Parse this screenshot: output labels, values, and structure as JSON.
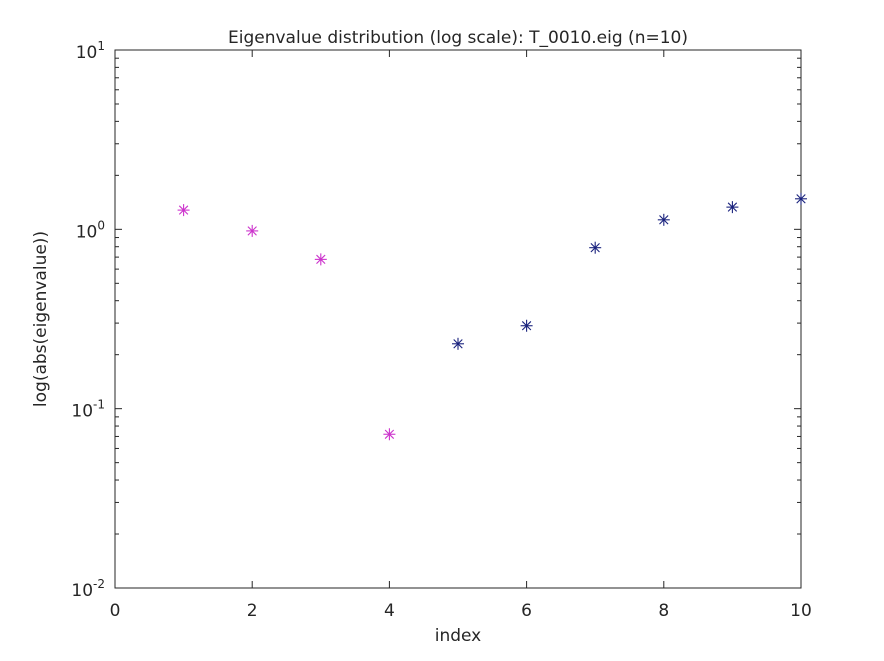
{
  "chart_data": {
    "type": "scatter",
    "title": "Eigenvalue distribution (log scale): T_0010.eig (n=10)",
    "xlabel": "index",
    "ylabel": "log(abs(eigenvalue))",
    "xlim": [
      0,
      10
    ],
    "ylim": [
      0.01,
      10
    ],
    "y_scale": "log",
    "grid": false,
    "x_ticks": [
      "0",
      "2",
      "4",
      "6",
      "8",
      "10"
    ],
    "y_ticks": [
      {
        "base": "10",
        "exp": "-2"
      },
      {
        "base": "10",
        "exp": "-1"
      },
      {
        "base": "10",
        "exp": "0"
      },
      {
        "base": "10",
        "exp": "1"
      }
    ],
    "marker": "asterisk",
    "series": [
      {
        "color": "#cc33cc",
        "x": [
          1,
          2,
          3,
          4
        ],
        "y": [
          1.28,
          0.98,
          0.68,
          0.072
        ]
      },
      {
        "color": "#1a237e",
        "x": [
          5,
          6,
          7,
          8,
          9,
          10
        ],
        "y": [
          0.23,
          0.29,
          0.79,
          1.13,
          1.33,
          1.48
        ]
      }
    ]
  }
}
